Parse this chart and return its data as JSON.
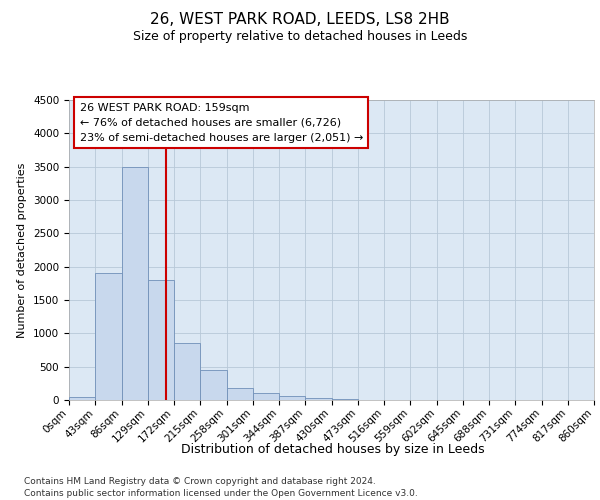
{
  "title1": "26, WEST PARK ROAD, LEEDS, LS8 2HB",
  "title2": "Size of property relative to detached houses in Leeds",
  "xlabel": "Distribution of detached houses by size in Leeds",
  "ylabel": "Number of detached properties",
  "bar_color": "#c8d8ed",
  "bar_edgecolor": "#7090b8",
  "bar_linewidth": 0.6,
  "grid_color": "#b8c8d8",
  "background_color": "#dce8f4",
  "annotation_line1": "26 WEST PARK ROAD: 159sqm",
  "annotation_line2": "← 76% of detached houses are smaller (6,726)",
  "annotation_line3": "23% of semi-detached houses are larger (2,051) →",
  "vline_x": 159,
  "vline_color": "#cc0000",
  "bins": [
    0,
    43,
    86,
    129,
    172,
    215,
    258,
    301,
    344,
    387,
    430,
    473,
    516,
    559,
    602,
    645,
    688,
    731,
    774,
    817,
    860
  ],
  "counts": [
    50,
    1900,
    3500,
    1800,
    850,
    450,
    175,
    100,
    60,
    30,
    15,
    0,
    0,
    0,
    0,
    0,
    0,
    0,
    0,
    0
  ],
  "ylim": [
    0,
    4500
  ],
  "yticks": [
    0,
    500,
    1000,
    1500,
    2000,
    2500,
    3000,
    3500,
    4000,
    4500
  ],
  "footer1": "Contains HM Land Registry data © Crown copyright and database right 2024.",
  "footer2": "Contains public sector information licensed under the Open Government Licence v3.0.",
  "title_fontsize": 11,
  "subtitle_fontsize": 9,
  "ylabel_fontsize": 8,
  "xlabel_fontsize": 9,
  "tick_fontsize": 7.5,
  "annotation_fontsize": 8,
  "footer_fontsize": 6.5
}
